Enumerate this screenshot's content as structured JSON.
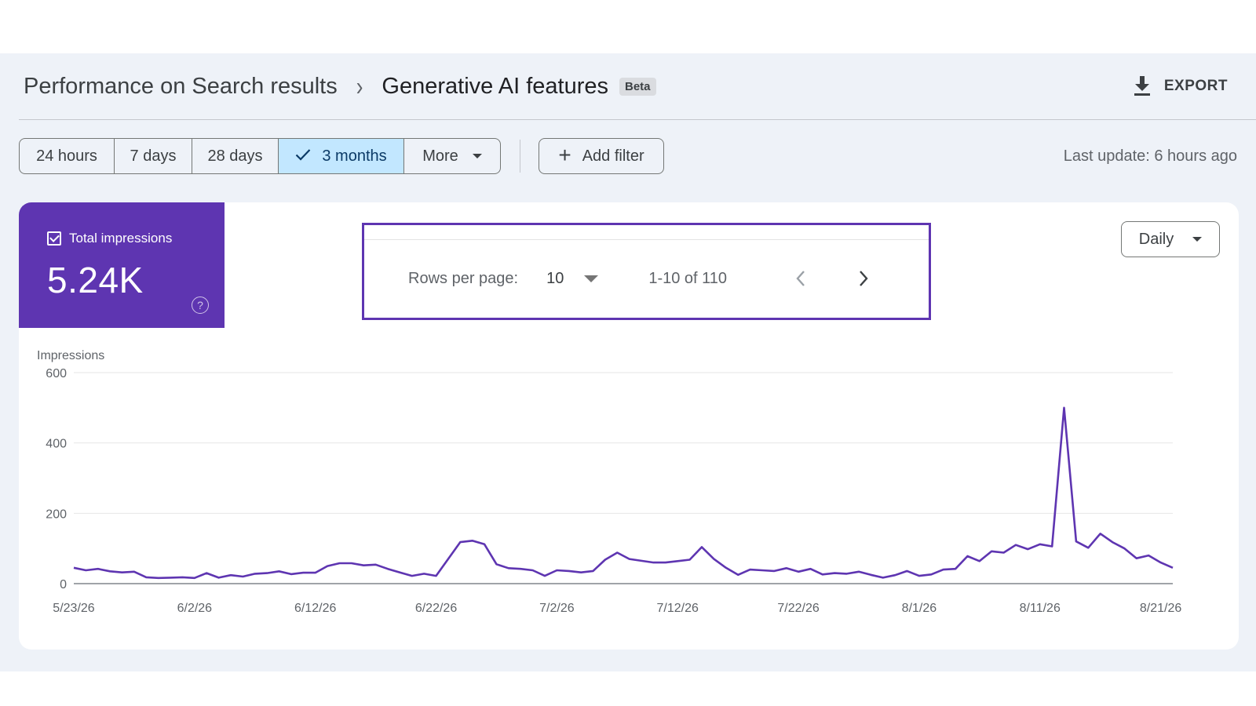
{
  "header": {
    "breadcrumb_parent": "Performance on Search results",
    "breadcrumb_separator": "›",
    "title": "Generative AI features",
    "badge": "Beta",
    "export_label": "EXPORT"
  },
  "toolbar": {
    "date_ranges": [
      {
        "label": "24 hours",
        "selected": false
      },
      {
        "label": "7 days",
        "selected": false
      },
      {
        "label": "28 days",
        "selected": false
      },
      {
        "label": "3 months",
        "selected": true
      },
      {
        "label": "More",
        "selected": false
      }
    ],
    "add_filter_label": "Add filter",
    "last_update": "Last update: 6 hours ago"
  },
  "metric": {
    "label": "Total impressions",
    "value": "5.24K",
    "checked": true,
    "help_glyph": "?"
  },
  "pagination": {
    "rows_per_page_label": "Rows per page:",
    "rows_per_page_value": "10",
    "range_text": "1-10 of 110"
  },
  "granularity": {
    "label": "Daily"
  },
  "colors": {
    "accent": "#5e35b1",
    "selected_chip": "#c2e7ff",
    "background": "#eef2f8"
  },
  "chart_data": {
    "type": "line",
    "title": "",
    "ylabel": "Impressions",
    "xlabel": "",
    "ylim": [
      0,
      600
    ],
    "yticks": [
      0,
      200,
      400,
      600
    ],
    "xtick_labels": [
      "5/23/26",
      "6/2/26",
      "6/12/26",
      "6/22/26",
      "7/2/26",
      "7/12/26",
      "7/22/26",
      "8/1/26",
      "8/11/26",
      "8/21/26"
    ],
    "grid": true,
    "series": [
      {
        "color": "#5e35b1",
        "x": [
          "5/23/26",
          "5/24/26",
          "5/25/26",
          "5/26/26",
          "5/27/26",
          "5/28/26",
          "5/29/26",
          "5/30/26",
          "5/31/26",
          "6/1/26",
          "6/2/26",
          "6/3/26",
          "6/4/26",
          "6/5/26",
          "6/6/26",
          "6/7/26",
          "6/8/26",
          "6/9/26",
          "6/10/26",
          "6/11/26",
          "6/12/26",
          "6/13/26",
          "6/14/26",
          "6/15/26",
          "6/16/26",
          "6/17/26",
          "6/18/26",
          "6/19/26",
          "6/20/26",
          "6/21/26",
          "6/22/26",
          "6/23/26",
          "6/24/26",
          "6/25/26",
          "6/26/26",
          "6/27/26",
          "6/28/26",
          "6/29/26",
          "6/30/26",
          "7/1/26",
          "7/2/26",
          "7/3/26",
          "7/4/26",
          "7/5/26",
          "7/6/26",
          "7/7/26",
          "7/8/26",
          "7/9/26",
          "7/10/26",
          "7/11/26",
          "7/12/26",
          "7/13/26",
          "7/14/26",
          "7/15/26",
          "7/16/26",
          "7/17/26",
          "7/18/26",
          "7/19/26",
          "7/20/26",
          "7/21/26",
          "7/22/26",
          "7/23/26",
          "7/24/26",
          "7/25/26",
          "7/26/26",
          "7/27/26",
          "7/28/26",
          "7/29/26",
          "7/30/26",
          "7/31/26",
          "8/1/26",
          "8/2/26",
          "8/3/26",
          "8/4/26",
          "8/5/26",
          "8/6/26",
          "8/7/26",
          "8/8/26",
          "8/9/26",
          "8/10/26",
          "8/11/26",
          "8/12/26",
          "8/13/26",
          "8/14/26",
          "8/15/26",
          "8/16/26",
          "8/17/26",
          "8/18/26",
          "8/19/26",
          "8/20/26",
          "8/21/26",
          "8/22/26"
        ],
        "values": [
          45,
          38,
          42,
          35,
          32,
          34,
          18,
          16,
          17,
          18,
          16,
          30,
          17,
          24,
          20,
          28,
          30,
          35,
          27,
          31,
          31,
          50,
          58,
          58,
          52,
          54,
          42,
          32,
          22,
          28,
          22,
          70,
          118,
          122,
          112,
          55,
          44,
          42,
          38,
          22,
          38,
          36,
          32,
          36,
          68,
          88,
          70,
          65,
          60,
          60,
          64,
          68,
          104,
          70,
          45,
          25,
          40,
          38,
          36,
          44,
          34,
          42,
          26,
          30,
          28,
          34,
          25,
          17,
          24,
          36,
          22,
          26,
          40,
          42,
          78,
          64,
          92,
          88,
          110,
          98,
          112,
          106,
          500,
          120,
          102,
          142,
          118,
          100,
          72,
          80,
          60,
          45
        ]
      }
    ]
  }
}
